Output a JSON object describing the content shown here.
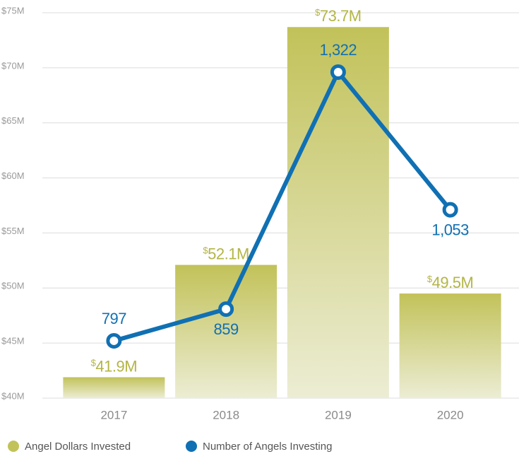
{
  "chart_data": {
    "type": "bar",
    "categories": [
      "2017",
      "2018",
      "2019",
      "2020"
    ],
    "ylim": [
      40,
      75
    ],
    "yticks": [
      {
        "value": 40,
        "label": "$40M"
      },
      {
        "value": 45,
        "label": "$45M"
      },
      {
        "value": 50,
        "label": "$50M"
      },
      {
        "value": 55,
        "label": "$55M"
      },
      {
        "value": 60,
        "label": "$60M"
      },
      {
        "value": 65,
        "label": "$65M"
      },
      {
        "value": 70,
        "label": "$70M"
      },
      {
        "value": 75,
        "label": "$75M"
      }
    ],
    "y2lim": [
      685,
      1438
    ],
    "grid": true,
    "series": [
      {
        "name": "Angel Dollars Invested",
        "type": "bar",
        "color": "#c2c25a",
        "values": [
          41.9,
          52.1,
          73.7,
          49.5
        ],
        "value_labels": [
          "$41.9M",
          "$52.1M",
          "$73.7M",
          "$49.5M"
        ]
      },
      {
        "name": "Number of Angels Investing",
        "type": "line",
        "axis": "y2",
        "color": "#1070b3",
        "values": [
          797,
          859,
          1322,
          1053
        ],
        "value_labels": [
          "797",
          "859",
          "1,322",
          "1,053"
        ]
      }
    ]
  }
}
